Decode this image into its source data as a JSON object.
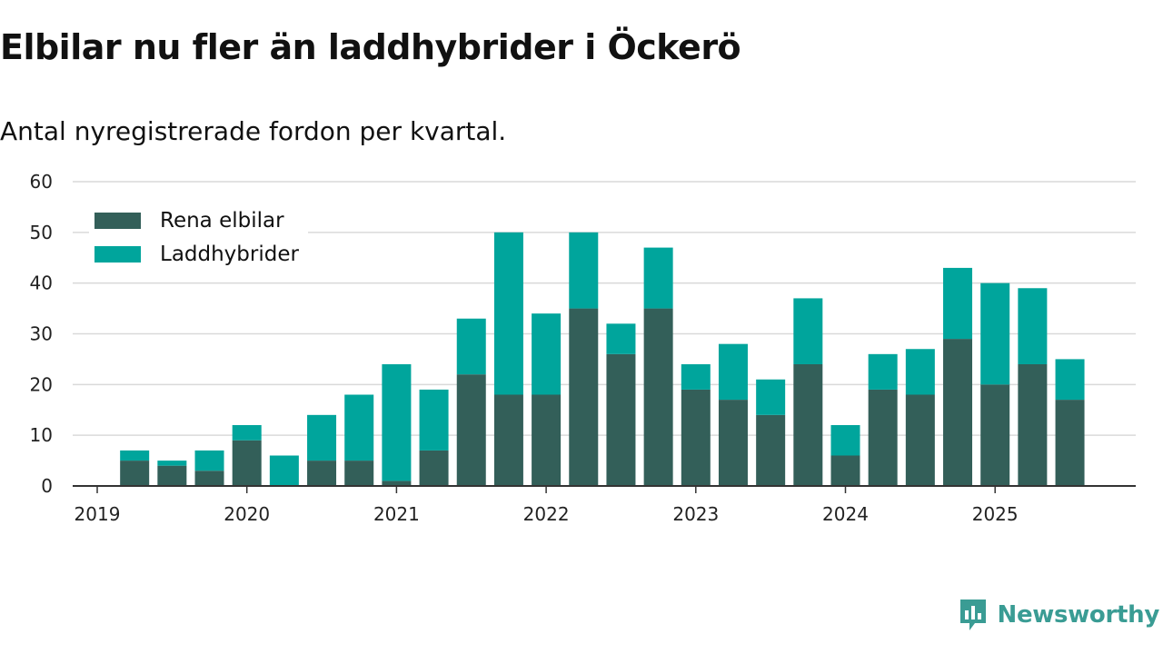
{
  "title": "Elbilar nu fler än laddhybrider i Öckerö",
  "subtitle": "Antal nyregistrerade fordon per kvartal.",
  "brand": {
    "name": "Newsworthy",
    "icon": "newsworthy-logo-icon",
    "color": "#3a9c94"
  },
  "chart_data": {
    "type": "bar",
    "stacked": true,
    "title": "Elbilar nu fler än laddhybrider i Öckerö",
    "subtitle": "Antal nyregistrerade fordon per kvartal.",
    "xlabel": "",
    "ylabel": "",
    "ylim": [
      0,
      60
    ],
    "yticks": [
      0,
      10,
      20,
      30,
      40,
      50,
      60
    ],
    "x_axis": {
      "range": [
        2019.0,
        2025.875
      ],
      "ticks": [
        2019,
        2020,
        2021,
        2022,
        2023,
        2024,
        2025
      ],
      "tick_labels": [
        "2019",
        "2020",
        "2021",
        "2022",
        "2023",
        "2024",
        "2025"
      ]
    },
    "grid": true,
    "legend_position": "top-left",
    "categories": [
      "2019 Q2",
      "2019 Q3",
      "2019 Q4",
      "2020 Q1",
      "2020 Q2",
      "2020 Q3",
      "2020 Q4",
      "2021 Q1",
      "2021 Q2",
      "2021 Q3",
      "2021 Q4",
      "2022 Q1",
      "2022 Q2",
      "2022 Q3",
      "2022 Q4",
      "2023 Q1",
      "2023 Q2",
      "2023 Q3",
      "2023 Q4",
      "2024 Q1",
      "2024 Q2",
      "2024 Q3",
      "2024 Q4",
      "2025 Q1",
      "2025 Q2",
      "2025 Q3"
    ],
    "x": [
      2019.25,
      2019.5,
      2019.75,
      2020.0,
      2020.25,
      2020.5,
      2020.75,
      2021.0,
      2021.25,
      2021.5,
      2021.75,
      2022.0,
      2022.25,
      2022.5,
      2022.75,
      2023.0,
      2023.25,
      2023.5,
      2023.75,
      2024.0,
      2024.25,
      2024.5,
      2024.75,
      2025.0,
      2025.25,
      2025.5
    ],
    "series": [
      {
        "name": "Rena elbilar",
        "color": "#335f59",
        "values": [
          5,
          4,
          3,
          9,
          0,
          5,
          5,
          1,
          7,
          22,
          18,
          18,
          35,
          26,
          35,
          19,
          17,
          14,
          24,
          6,
          19,
          18,
          29,
          20,
          24,
          17
        ]
      },
      {
        "name": "Laddhybrider",
        "color": "#00a59c",
        "values": [
          2,
          1,
          4,
          3,
          6,
          9,
          13,
          23,
          12,
          11,
          32,
          16,
          15,
          6,
          12,
          5,
          11,
          7,
          13,
          6,
          7,
          9,
          14,
          20,
          15,
          8
        ]
      }
    ]
  }
}
